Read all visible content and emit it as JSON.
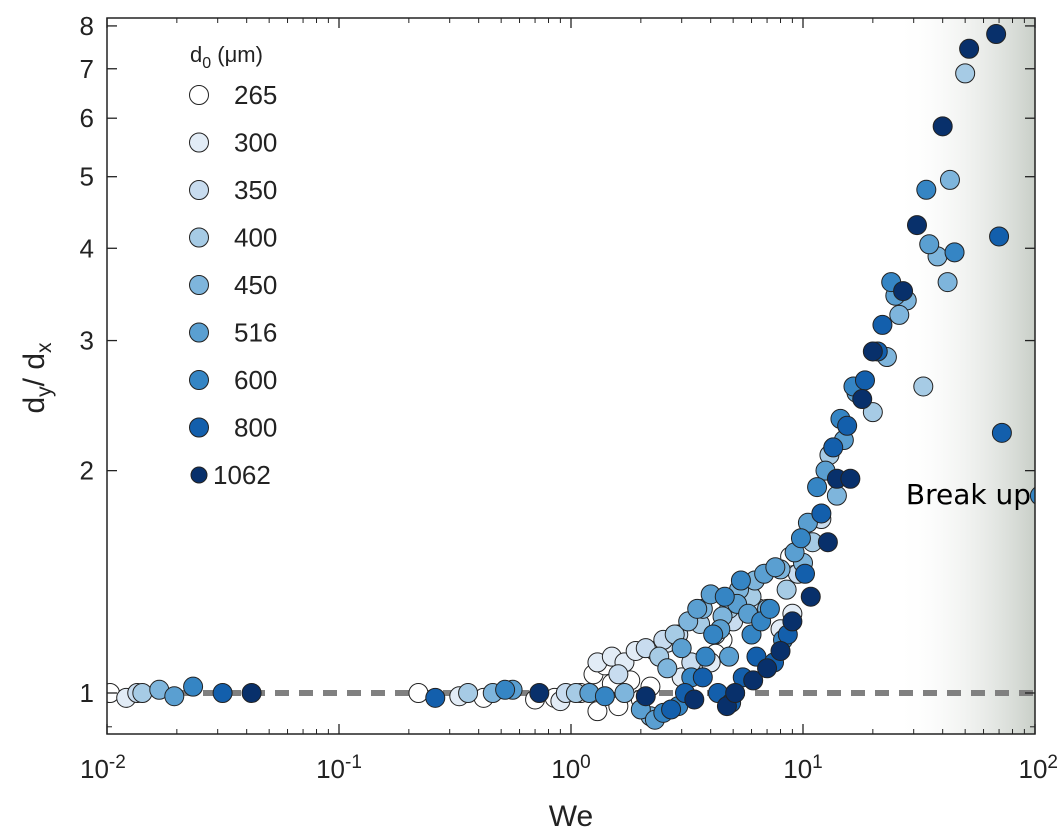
{
  "chart_data": {
    "type": "scatter",
    "xlabel": "We",
    "ylabel": "dy/dx",
    "xscale": "log",
    "yscale": "log",
    "xlim": [
      0.01,
      100
    ],
    "ylim": [
      0.88,
      8.2
    ],
    "x_ticks": [
      {
        "value": 0.01,
        "label": "10",
        "exp": "-2"
      },
      {
        "value": 0.1,
        "label": "10",
        "exp": "-1"
      },
      {
        "value": 1,
        "label": "10",
        "exp": "0"
      },
      {
        "value": 10,
        "label": "10",
        "exp": "1"
      },
      {
        "value": 100,
        "label": "10",
        "exp": "2"
      }
    ],
    "y_ticks": [
      {
        "value": 1,
        "label": "1"
      },
      {
        "value": 2,
        "label": "2"
      },
      {
        "value": 3,
        "label": "3"
      },
      {
        "value": 4,
        "label": "4"
      },
      {
        "value": 5,
        "label": "5"
      },
      {
        "value": 6,
        "label": "6"
      },
      {
        "value": 7,
        "label": "7"
      },
      {
        "value": 8,
        "label": "8"
      }
    ],
    "reference_line": {
      "y": 1,
      "style": "dashed",
      "color": "#808080"
    },
    "shaded_region": {
      "x_from": 25,
      "x_to": 100,
      "label": "Break up"
    },
    "legend": {
      "title": "d0 (μm)",
      "placement": "top-left"
    },
    "series": [
      {
        "name": "265",
        "color": "#ffffff",
        "marker_scale": 1.0,
        "points": [
          [
            0.0103,
            1.0
          ],
          [
            0.0082,
            1.0
          ],
          [
            0.22,
            1.0
          ],
          [
            0.42,
            0.985
          ],
          [
            0.7,
            0.98
          ],
          [
            0.85,
            0.985
          ],
          [
            1.1,
            1.0
          ],
          [
            1.25,
            1.06
          ],
          [
            1.3,
            0.945
          ],
          [
            1.4,
            1.09
          ],
          [
            1.5,
            1.03
          ],
          [
            1.6,
            0.96
          ],
          [
            1.8,
            1.04
          ],
          [
            2.0,
            0.98
          ],
          [
            2.2,
            1.02
          ],
          [
            4.5,
            1.18
          ],
          [
            4.2,
            1.13
          ],
          [
            8.8,
            1.53
          ]
        ]
      },
      {
        "name": "300",
        "color": "#e2ecf6",
        "marker_scale": 1.0,
        "points": [
          [
            0.0121,
            0.985
          ],
          [
            0.33,
            0.99
          ],
          [
            0.9,
            0.975
          ],
          [
            1.3,
            1.1
          ],
          [
            1.5,
            1.12
          ],
          [
            1.7,
            1.1
          ],
          [
            1.9,
            1.14
          ],
          [
            2.3,
            1.14
          ],
          [
            2.6,
            1.17
          ],
          [
            3.0,
            1.05
          ],
          [
            3.5,
            1.08
          ],
          [
            4.0,
            1.1
          ],
          [
            8.0,
            1.22
          ],
          [
            9.0,
            1.28
          ]
        ]
      },
      {
        "name": "350",
        "color": "#c8dcef",
        "marker_scale": 1.0,
        "points": [
          [
            0.0135,
            1.0
          ],
          [
            0.95,
            1.0
          ],
          [
            1.6,
            1.06
          ],
          [
            2.1,
            1.15
          ],
          [
            2.5,
            1.18
          ],
          [
            2.9,
            1.2
          ],
          [
            3.3,
            1.1
          ],
          [
            4.2,
            1.2
          ],
          [
            5.0,
            1.25
          ],
          [
            6.5,
            1.3
          ],
          [
            9.5,
            1.45
          ],
          [
            12,
            1.72
          ]
        ]
      },
      {
        "name": "400",
        "color": "#a6cbe5",
        "marker_scale": 1.0,
        "points": [
          [
            0.0142,
            1.0
          ],
          [
            0.36,
            1.0
          ],
          [
            1.05,
            1.0
          ],
          [
            2.4,
            1.12
          ],
          [
            2.8,
            1.2
          ],
          [
            3.6,
            1.24
          ],
          [
            4.8,
            1.3
          ],
          [
            6.0,
            1.35
          ],
          [
            8.5,
            1.38
          ],
          [
            11,
            1.6
          ],
          [
            13,
            2.1
          ],
          [
            20,
            2.4
          ],
          [
            33,
            2.6
          ],
          [
            50,
            6.9
          ]
        ]
      },
      {
        "name": "450",
        "color": "#7eb5dc",
        "marker_scale": 1.0,
        "points": [
          [
            0.0168,
            1.01
          ],
          [
            0.46,
            1.0
          ],
          [
            1.7,
            1.0
          ],
          [
            2.2,
            0.93
          ],
          [
            2.6,
            1.08
          ],
          [
            3.2,
            1.25
          ],
          [
            3.7,
            1.3
          ],
          [
            4.5,
            1.27
          ],
          [
            5.3,
            1.38
          ],
          [
            6.2,
            1.42
          ],
          [
            7.0,
            1.3
          ],
          [
            8.0,
            1.47
          ],
          [
            10,
            1.5
          ],
          [
            14,
            1.85
          ],
          [
            23,
            2.85
          ],
          [
            28,
            3.4
          ],
          [
            26,
            3.25
          ],
          [
            38,
            3.9
          ],
          [
            42,
            3.6
          ],
          [
            43,
            4.95
          ]
        ]
      },
      {
        "name": "516",
        "color": "#5a9fd1",
        "marker_scale": 1.0,
        "points": [
          [
            0.0195,
            0.99
          ],
          [
            0.56,
            1.01
          ],
          [
            1.2,
            1.0
          ],
          [
            2.0,
            0.95
          ],
          [
            2.3,
            0.92
          ],
          [
            3.0,
            1.15
          ],
          [
            3.5,
            1.3
          ],
          [
            4.0,
            1.36
          ],
          [
            4.4,
            1.22
          ],
          [
            4.8,
            1.12
          ],
          [
            5.2,
            1.32
          ],
          [
            5.8,
            1.28
          ],
          [
            6.8,
            1.45
          ],
          [
            7.6,
            1.48
          ],
          [
            9.2,
            1.55
          ],
          [
            10.5,
            1.7
          ],
          [
            12.5,
            2.0
          ],
          [
            15,
            2.2
          ],
          [
            17,
            2.55
          ],
          [
            25,
            3.45
          ],
          [
            35,
            4.05
          ]
        ]
      },
      {
        "name": "600",
        "color": "#3585c4",
        "marker_scale": 1.0,
        "points": [
          [
            0.0235,
            1.02
          ],
          [
            0.52,
            1.01
          ],
          [
            1.4,
            0.99
          ],
          [
            2.5,
            0.94
          ],
          [
            2.9,
            0.96
          ],
          [
            3.3,
            1.05
          ],
          [
            3.8,
            1.12
          ],
          [
            4.1,
            1.2
          ],
          [
            4.6,
            1.35
          ],
          [
            5.4,
            1.42
          ],
          [
            6.0,
            1.2
          ],
          [
            6.6,
            1.25
          ],
          [
            7.2,
            1.3
          ],
          [
            8.2,
            1.18
          ],
          [
            9.8,
            1.62
          ],
          [
            11.5,
            1.9
          ],
          [
            14.5,
            2.35
          ],
          [
            16.5,
            2.6
          ],
          [
            24,
            3.6
          ],
          [
            34,
            4.8
          ],
          [
            45,
            3.95
          ],
          [
            105,
            1.85
          ]
        ]
      },
      {
        "name": "800",
        "color": "#135fac",
        "marker_scale": 1.0,
        "points": [
          [
            0.0315,
            1.0
          ],
          [
            0.26,
            0.985
          ],
          [
            2.7,
            0.95
          ],
          [
            3.1,
            1.0
          ],
          [
            3.7,
            1.05
          ],
          [
            4.3,
            1.0
          ],
          [
            4.9,
            0.97
          ],
          [
            5.5,
            1.05
          ],
          [
            6.3,
            1.12
          ],
          [
            7.5,
            1.1
          ],
          [
            8.6,
            1.2
          ],
          [
            10.2,
            1.45
          ],
          [
            12,
            1.75
          ],
          [
            13.5,
            2.15
          ],
          [
            15.5,
            2.3
          ],
          [
            18.5,
            2.65
          ],
          [
            21,
            2.9
          ],
          [
            22,
            3.15
          ],
          [
            70,
            4.15
          ],
          [
            72,
            2.25
          ]
        ]
      },
      {
        "name": "1062",
        "color": "#08306b",
        "marker_scale": 1.0,
        "points": [
          [
            0.042,
            1.0
          ],
          [
            0.73,
            1.0
          ],
          [
            2.1,
            0.99
          ],
          [
            3.4,
            0.98
          ],
          [
            4.7,
            0.96
          ],
          [
            5.1,
            1.0
          ],
          [
            6.1,
            1.04
          ],
          [
            7.0,
            1.08
          ],
          [
            8.0,
            1.14
          ],
          [
            9.0,
            1.25
          ],
          [
            10.8,
            1.35
          ],
          [
            12.8,
            1.6
          ],
          [
            14,
            1.95
          ],
          [
            16,
            1.95
          ],
          [
            18,
            2.5
          ],
          [
            20,
            2.9
          ],
          [
            27,
            3.5
          ],
          [
            31,
            4.3
          ],
          [
            40,
            5.85
          ],
          [
            52,
            7.45
          ],
          [
            68,
            7.8
          ]
        ]
      }
    ]
  }
}
